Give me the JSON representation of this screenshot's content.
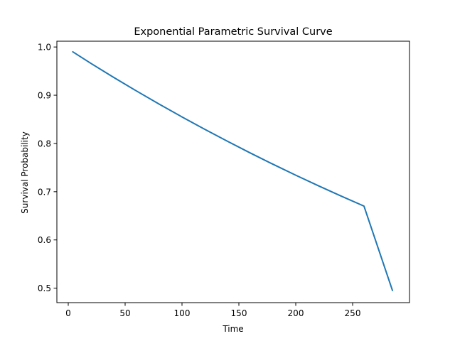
{
  "chart_data": {
    "type": "line",
    "title": "Exponential Parametric Survival Curve",
    "xlabel": "Time",
    "ylabel": "Survival Probability",
    "xlim": [
      -10,
      300
    ],
    "ylim": [
      0.47,
      1.012
    ],
    "xticks": [
      0,
      50,
      100,
      150,
      200,
      250
    ],
    "yticks": [
      0.5,
      0.6,
      0.7,
      0.8,
      0.9,
      1.0
    ],
    "ytick_labels": [
      "0.5",
      "0.6",
      "0.7",
      "0.8",
      "0.9",
      "1.0"
    ],
    "grid": false,
    "legend": "none",
    "series": [
      {
        "color": "#1f77b4",
        "x": [
          4,
          20,
          40,
          60,
          80,
          100,
          120,
          140,
          160,
          180,
          200,
          220,
          240,
          260,
          285
        ],
        "y": [
          0.99,
          0.9659,
          0.9369,
          0.9088,
          0.8815,
          0.855,
          0.8294,
          0.8045,
          0.7803,
          0.7569,
          0.7342,
          0.7122,
          0.6908,
          0.6701,
          0.4953
        ]
      }
    ]
  }
}
